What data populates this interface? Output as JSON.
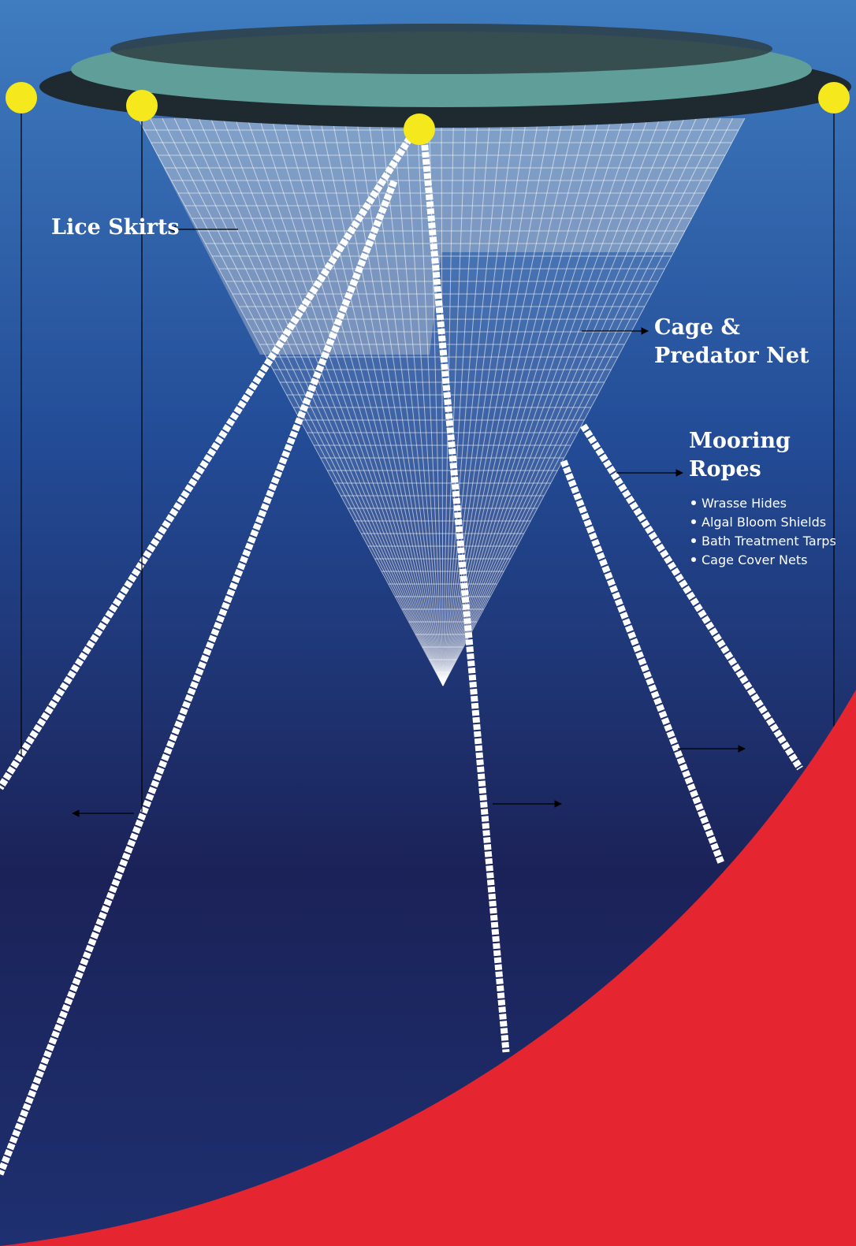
{
  "labels": {
    "lice_skirts": "Lice Skirts",
    "cage_net": [
      "Cage &",
      "Predator Net"
    ],
    "mooring_ropes": [
      "Mooring",
      "Ropes"
    ]
  },
  "mooring_uses": [
    "Wrasse Hides",
    "Algal Bloom Shields",
    "Bath Treatment Tarps",
    "Cage Cover Nets"
  ]
}
